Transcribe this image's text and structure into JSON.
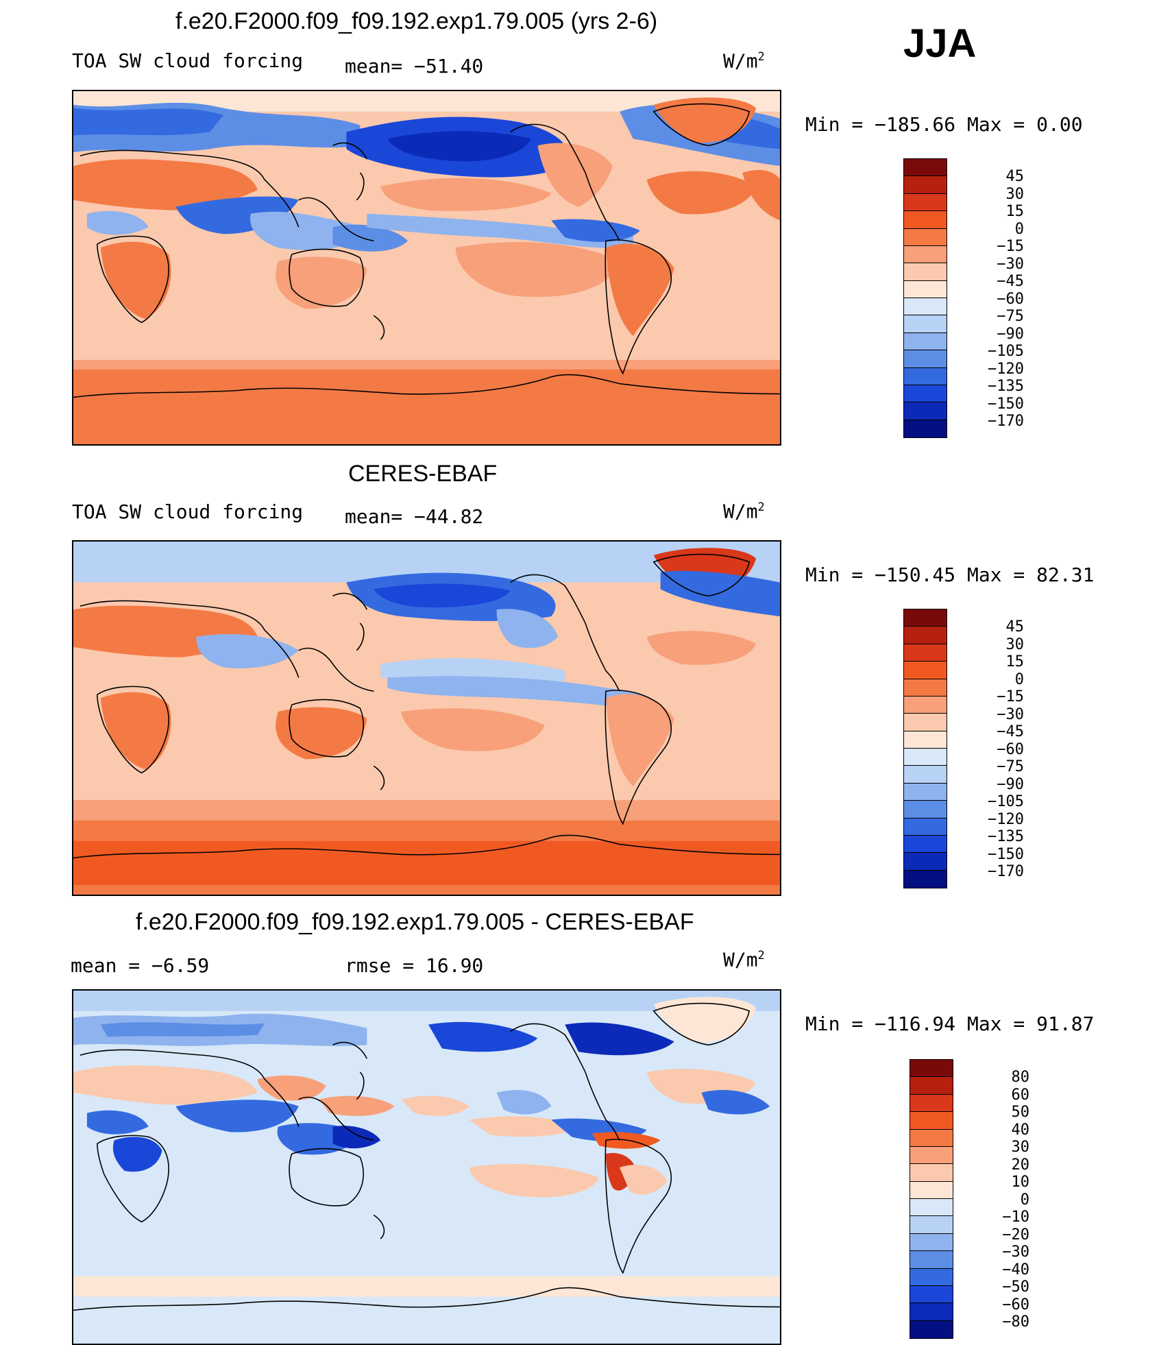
{
  "season": "JJA",
  "panels": [
    {
      "title": "f.e20.F2000.f09_f09.192.exp1.79.005 (yrs 2-6)",
      "left_label": "TOA SW cloud forcing",
      "center_label": "mean= −51.40",
      "units": "W/m",
      "units_exp": "2",
      "minmax": "Min = −185.66 Max =   0.00",
      "colorbar_labels": [
        "45",
        "30",
        "15",
        "0",
        "−15",
        "−30",
        "−45",
        "−60",
        "−75",
        "−90",
        "−105",
        "−120",
        "−135",
        "−150",
        "−170"
      ],
      "palette": "abs"
    },
    {
      "title": "CERES-EBAF",
      "left_label": "TOA SW cloud forcing",
      "center_label": "mean= −44.82",
      "units": "W/m",
      "units_exp": "2",
      "minmax": "Min = −150.45 Max =  82.31",
      "colorbar_labels": [
        "45",
        "30",
        "15",
        "0",
        "−15",
        "−30",
        "−45",
        "−60",
        "−75",
        "−90",
        "−105",
        "−120",
        "−135",
        "−150",
        "−170"
      ],
      "palette": "abs"
    },
    {
      "title": "f.e20.F2000.f09_f09.192.exp1.79.005 - CERES-EBAF",
      "left_label": "mean =  −6.59",
      "center_label": "rmse =  16.90",
      "units": "W/m",
      "units_exp": "2",
      "minmax": "Min = −116.94 Max =  91.87",
      "colorbar_labels": [
        "80",
        "60",
        "50",
        "40",
        "30",
        "20",
        "10",
        "0",
        "−10",
        "−20",
        "−30",
        "−40",
        "−50",
        "−60",
        "−80"
      ],
      "palette": "diff"
    }
  ],
  "colors": {
    "abs_palette": [
      "#7a0a0a",
      "#b5200f",
      "#d9381a",
      "#f05a22",
      "#f37a45",
      "#f7a07a",
      "#fbc9ad",
      "#fde6d6",
      "#d8e8f8",
      "#b7d2f5",
      "#8fb3ee",
      "#5d8ee6",
      "#346ae0",
      "#1a47d8",
      "#0c2ab8",
      "#040f82"
    ],
    "diff_palette": [
      "#7a0a0a",
      "#b5200f",
      "#d9381a",
      "#f05a22",
      "#f37a45",
      "#f7a07a",
      "#fbc9ad",
      "#fde6d6",
      "#d8e8f8",
      "#b7d2f5",
      "#8fb3ee",
      "#5d8ee6",
      "#346ae0",
      "#1a47d8",
      "#0c2ab8",
      "#040f82"
    ]
  }
}
